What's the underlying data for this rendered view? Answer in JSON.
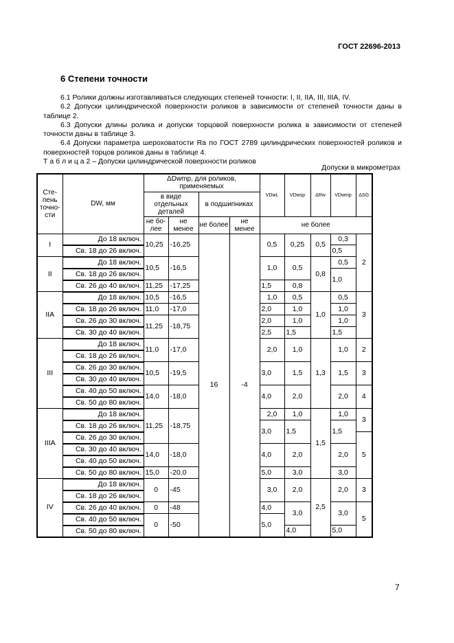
{
  "header": {
    "standard": "ГОСТ 22696-2013"
  },
  "section": {
    "title": "6 Степени точности",
    "paragraphs": [
      "6.1 Ролики должны изготавливаться следующих степеней точности: I, II, IIA, III, IIIA, IV.",
      "6.2 Допуски цилиндрической поверхности роликов в зависимости от степеней точности даны в таблице 2.",
      "6.3 Допуски длины ролика и допуски торцовой поверхности ролика в зависимости от степеней точности даны в таблице 3.",
      "6.4 Допуски параметра шероховатости Ra по ГОСТ 2789 цилиндрических поверхностей роликов и поверхностей торцов роликов даны в таблице 4."
    ],
    "table_caption": "Т а б л и ц а 2 – Допуски цилиндрической поверхности роликов"
  },
  "table": {
    "units": "Допуски в микрометрах",
    "headers": {
      "grade": "Сте-пень точно-сти",
      "dw": "DW, мм",
      "delta": "ΔDwmp, для роликов, применяемых",
      "separate": "в виде отдельных деталей",
      "bearing": "в подшипниках",
      "vdwl": "VDwL",
      "vdwsp": "VDwsp",
      "drw": "ΔRw",
      "vdwmp": "VDwmp",
      "dsg": "ΔSG",
      "max": "не бо-лее",
      "min": "не менее",
      "max2": "не более",
      "min2": "не менее",
      "max_all": "не более"
    },
    "rows": [
      [
        [
          "I",
          2
        ],
        "До 18 включ.",
        [
          "10,25",
          2
        ],
        [
          "-16,25",
          2
        ],
        [
          "16",
          26
        ],
        [
          "-4",
          26
        ],
        [
          "0,5",
          2
        ],
        [
          "0,25",
          2
        ],
        [
          "0,5",
          2
        ],
        "0,3",
        [
          "2",
          5
        ]
      ],
      [
        "Св. 18 до 26 включ.",
        "0,5"
      ],
      [
        [
          "II",
          3
        ],
        "До 18 включ.",
        [
          "10,5",
          2
        ],
        [
          "-16,5",
          2
        ],
        [
          "1,0",
          2
        ],
        [
          "0,5",
          2
        ],
        [
          "0,8",
          3
        ],
        "0,5"
      ],
      [
        "Св. 18 до 26 включ.",
        [
          "1,0",
          2
        ]
      ],
      [
        "Св. 26 до 40 включ.",
        "11,25",
        "-17,25",
        "1,5",
        "0,8"
      ],
      [
        [
          "IIA",
          4
        ],
        "До 18 включ.",
        "10,5",
        "-16,5",
        "1,0",
        "0,5",
        [
          "1,0",
          4
        ],
        "0,5",
        [
          "3",
          4
        ]
      ],
      [
        "Св. 18 до 26 включ.",
        "11,0",
        "-17,0",
        "2,0",
        "1,0",
        "1,0"
      ],
      [
        "Св. 26 до 30 включ.",
        [
          "11,25",
          2
        ],
        [
          "-18,75",
          2
        ],
        "2,0",
        "1,0",
        "1,0"
      ],
      [
        "Св. 30 до 40 включ.",
        "2,5",
        "1,5",
        "1,5"
      ],
      [
        [
          "III",
          6
        ],
        "До 18 включ.",
        [
          "11,0",
          2
        ],
        [
          "-17,0",
          2
        ],
        [
          "2,0",
          2
        ],
        [
          "1,0",
          2
        ],
        [
          "1,3",
          6
        ],
        [
          "1,0",
          2
        ],
        [
          "2",
          2
        ]
      ],
      [
        "Св. 18 до 26 включ."
      ],
      [
        "Св. 26 до 30 включ.",
        [
          "10,5",
          2
        ],
        [
          "-19,5",
          2
        ],
        [
          "3,0",
          2
        ],
        [
          "1,5",
          2
        ],
        [
          "1,5",
          2
        ],
        [
          "3",
          2
        ]
      ],
      [
        "Св. 30 до 40 включ."
      ],
      [
        "Св. 40 до 50 включ.",
        [
          "14,0",
          2
        ],
        [
          "-18,0",
          2
        ],
        [
          "4,0",
          2
        ],
        [
          "2,0",
          2
        ],
        [
          "2,0",
          2
        ],
        [
          "4",
          2
        ]
      ],
      [
        "Св. 50 до 80 включ."
      ],
      [
        [
          "IIIA",
          6
        ],
        "До 18 включ.",
        [
          "11,25",
          3
        ],
        [
          "-18,75",
          3
        ],
        "2,0",
        "1,0",
        [
          "1,5",
          6
        ],
        "1,0",
        [
          "3",
          2
        ]
      ],
      [
        "Св. 18 до 26 включ.",
        [
          "3,0",
          2
        ],
        [
          "1,5",
          2
        ],
        [
          "1,5",
          2
        ]
      ],
      [
        "Св. 26 до 30 включ.",
        [
          "5",
          4
        ]
      ],
      [
        "Св. 30 до 40 включ.",
        [
          "14,0",
          2
        ],
        [
          "-18,0",
          2
        ],
        [
          "4,0",
          2
        ],
        [
          "2,0",
          2
        ],
        [
          "2,0",
          2
        ]
      ],
      [
        "Св. 40 до 50 включ."
      ],
      [
        "Св. 50 до 80 включ.",
        "15,0",
        "-20,0",
        "5,0",
        "3,0",
        "3,0"
      ],
      [
        [
          "IV",
          5
        ],
        "До 18 включ.",
        [
          "0",
          2
        ],
        [
          "-45",
          2
        ],
        [
          "3,0",
          2
        ],
        [
          "2,0",
          2
        ],
        [
          "2,5",
          5
        ],
        [
          "2,0",
          2
        ],
        [
          "3",
          2
        ]
      ],
      [
        "Св. 18 до 26 включ."
      ],
      [
        "Св. 26 до 40 включ.",
        "0",
        "-48",
        "4,0",
        [
          "3,0",
          2
        ],
        [
          "3,0",
          2
        ],
        [
          "5",
          3
        ]
      ],
      [
        "Св. 40 до 50 включ.",
        [
          "0",
          2
        ],
        [
          "-50",
          2
        ],
        [
          "5,0",
          2
        ]
      ],
      [
        "Св. 50 до 80 включ.",
        "4,0",
        "5,0"
      ]
    ]
  },
  "footer": {
    "page_number": "7"
  }
}
